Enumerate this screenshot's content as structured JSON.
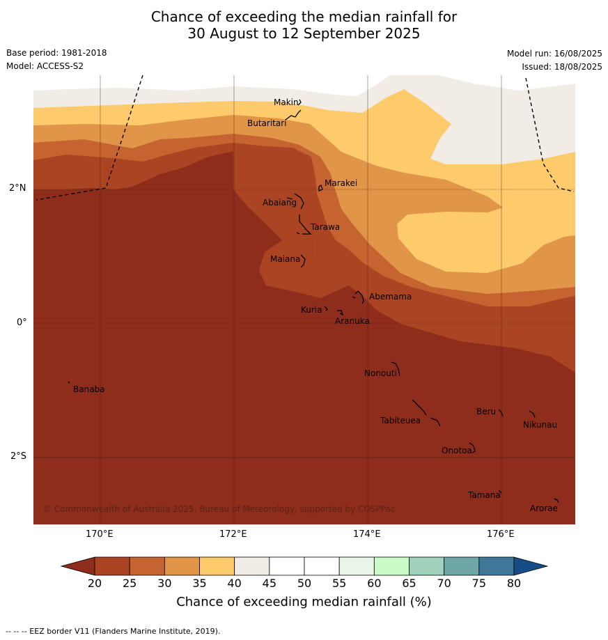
{
  "title_line1": "Chance of exceeding the median rainfall for",
  "title_line2": "30 August to 12 September 2025",
  "base_period": "Base period: 1981-2018",
  "model": "Model: ACCESS-S2",
  "model_run": "Model run: 16/08/2025",
  "issued": "Issued: 18/08/2025",
  "copyright": "© Commonwealth of Australia 2025, Bureau of Meteorology, supported by COSPPac",
  "footer": "--  --  -- EEZ border V11 (Flanders Marine Institute, 2019).",
  "axes": {
    "lat_labels": [
      "2°N",
      "0°",
      "2°S"
    ],
    "lon_labels": [
      "170°E",
      "172°E",
      "174°E",
      "176°E"
    ]
  },
  "colorbar": {
    "title": "Chance of exceeding median rainfall (%)",
    "ticks": [
      "20",
      "25",
      "30",
      "35",
      "40",
      "45",
      "50",
      "55",
      "60",
      "65",
      "70",
      "75",
      "80"
    ],
    "colors": {
      "below20": "#8e2d1c",
      "20-25": "#aa4423",
      "25-30": "#c56431",
      "30-35": "#e09548",
      "35-40": "#fdcb6c",
      "40-45": "#f1ece6",
      "45-50": "#ffffff",
      "50-55": "#ffffff",
      "55-60": "#eaf4e8",
      "60-65": "#c9fcc8",
      "65-70": "#a0d2bb",
      "70-75": "#6fa7a8",
      "75-80": "#3f7799",
      "above80": "#174d86"
    }
  },
  "places": {
    "makin": "Makin",
    "butaritari": "Butaritari",
    "marakei": "Marakei",
    "abaiang": "Abaiang",
    "tarawa": "Tarawa",
    "maiana": "Maiana",
    "abemama": "Abemama",
    "kuria": "Kuria",
    "aranuka": "Aranuka",
    "nonouti": "Nonouti",
    "banaba": "Banaba",
    "beru": "Beru",
    "nikunau": "Nikunau",
    "tabiteuea": "Tabiteuea",
    "onotoa": "Onotoa",
    "tamana": "Tamana",
    "arorae": "Arorae"
  }
}
